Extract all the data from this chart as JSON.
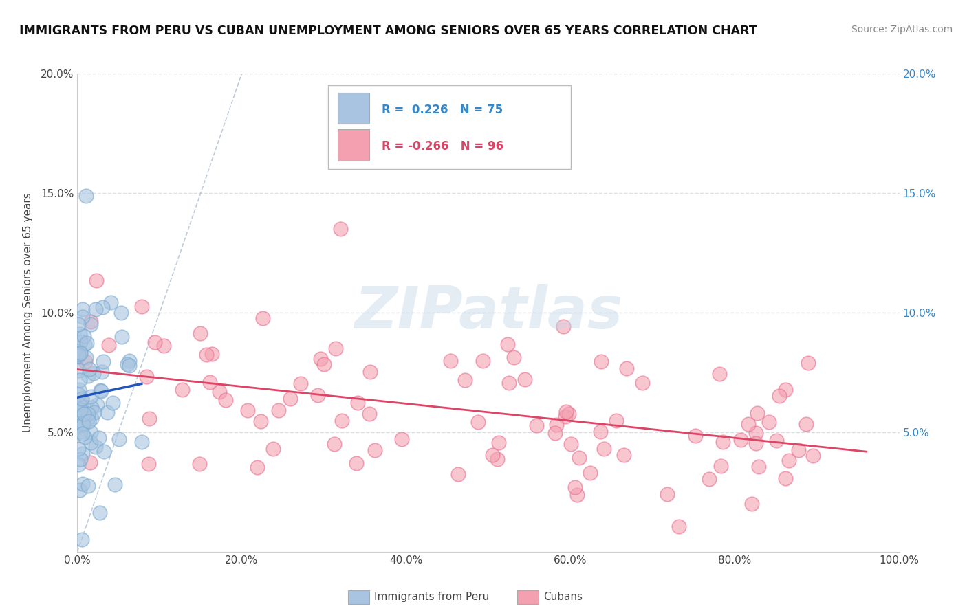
{
  "title": "IMMIGRANTS FROM PERU VS CUBAN UNEMPLOYMENT AMONG SENIORS OVER 65 YEARS CORRELATION CHART",
  "source": "Source: ZipAtlas.com",
  "ylabel": "Unemployment Among Seniors over 65 years",
  "xlim": [
    0,
    1.0
  ],
  "ylim": [
    0,
    0.2
  ],
  "xtick_vals": [
    0,
    0.2,
    0.4,
    0.6,
    0.8,
    1.0
  ],
  "xtick_labels": [
    "0.0%",
    "20.0%",
    "40.0%",
    "60.0%",
    "80.0%",
    "100.0%"
  ],
  "ytick_vals": [
    0,
    0.05,
    0.1,
    0.15,
    0.2
  ],
  "ytick_labels": [
    "",
    "5.0%",
    "10.0%",
    "15.0%",
    "20.0%"
  ],
  "legend_peru_label": "Immigrants from Peru",
  "legend_cuba_label": "Cubans",
  "R_peru": 0.226,
  "N_peru": 75,
  "R_cuba": -0.266,
  "N_cuba": 96,
  "peru_color": "#a8c4e0",
  "cuba_color": "#f4a0b0",
  "peru_edge_color": "#7aaad0",
  "cuba_edge_color": "#e87090",
  "peru_line_color": "#2255bb",
  "cuba_line_color": "#dd4466",
  "diagonal_color": "#aabbd0",
  "grid_color": "#d8dde8",
  "background_color": "#ffffff",
  "watermark_text": "ZIPatlas",
  "watermark_color": "#c5d5e8",
  "title_color": "#111111",
  "source_color": "#888888",
  "label_color": "#444444",
  "right_tick_color": "#3388cc"
}
